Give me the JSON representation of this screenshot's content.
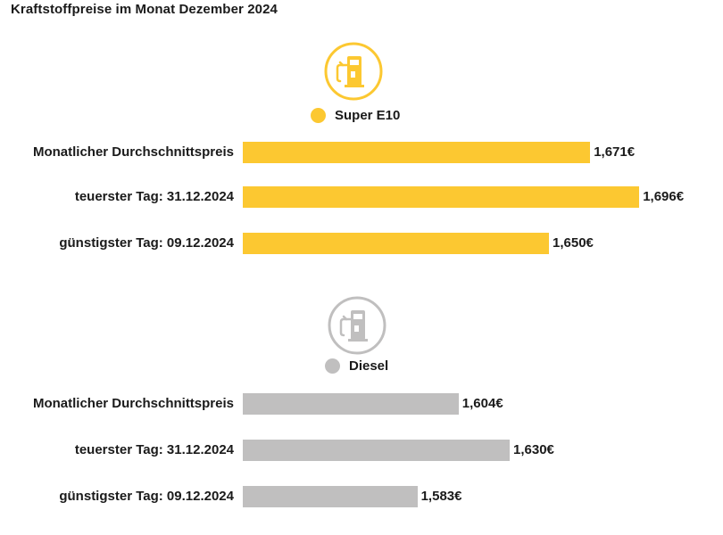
{
  "title": "Kraftstoffpreise im Monat Dezember 2024",
  "colors": {
    "super": "#fcc831",
    "diesel": "#c0bfbf",
    "text": "#1a1a1a"
  },
  "icons": {
    "super": "fuel-pump-icon",
    "diesel": "fuel-pump-icon"
  },
  "chart_data": {
    "type": "bar",
    "orientation": "horizontal",
    "title": "Kraftstoffpreise im Monat Dezember 2024",
    "unit": "€",
    "groups": [
      {
        "name": "Super E10",
        "color": "#fcc831",
        "categories": [
          "Monatlicher Durchschnittspreis",
          "teuerster Tag: 31.12.2024",
          "günstigster Tag: 09.12.2024"
        ],
        "values": [
          1.671,
          1.696,
          1.65
        ],
        "value_labels": [
          "1,671€",
          "1,696€",
          "1,650€"
        ]
      },
      {
        "name": "Diesel",
        "color": "#c0bfbf",
        "categories": [
          "Monatlicher Durchschnittspreis",
          "teuerster Tag: 31.12.2024",
          "günstigster Tag: 09.12.2024"
        ],
        "values": [
          1.604,
          1.63,
          1.583
        ],
        "value_labels": [
          "1,604€",
          "1,630€",
          "1,583€"
        ]
      }
    ],
    "grid": false,
    "axes_visible": false
  }
}
